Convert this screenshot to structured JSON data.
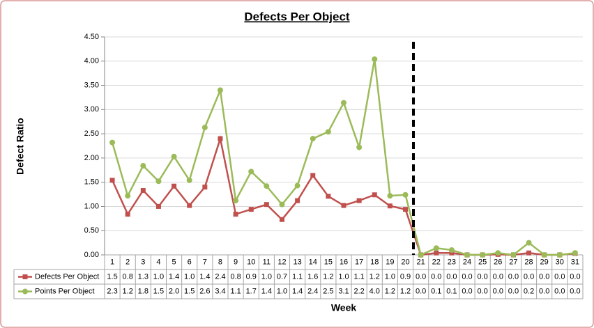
{
  "chart_data": {
    "type": "line",
    "title": "Defects Per Object",
    "x_label": "Week",
    "y_label": "Defect Ratio",
    "categories": [
      "1",
      "2",
      "3",
      "4",
      "5",
      "6",
      "7",
      "8",
      "9",
      "10",
      "11",
      "12",
      "13",
      "14",
      "15",
      "16",
      "17",
      "18",
      "19",
      "20",
      "21",
      "22",
      "23",
      "24",
      "25",
      "26",
      "27",
      "28",
      "29",
      "30",
      "31"
    ],
    "series": [
      {
        "name": "Defects Per Object",
        "color": "#c0504d",
        "marker": "square",
        "values": [
          1.54,
          0.84,
          1.33,
          1.0,
          1.42,
          1.02,
          1.4,
          2.4,
          0.84,
          0.94,
          1.04,
          0.73,
          1.12,
          1.64,
          1.21,
          1.02,
          1.12,
          1.24,
          1.01,
          0.94,
          0,
          0.04,
          0.04,
          0,
          0,
          0.01,
          0,
          0.04,
          0,
          0,
          0.03
        ],
        "value_labels": [
          "1.5",
          "0.8",
          "1.3",
          "1.0",
          "1.4",
          "1.0",
          "1.4",
          "2.4",
          "0.8",
          "0.9",
          "1.0",
          "0.7",
          "1.1",
          "1.6",
          "1.2",
          "1.0",
          "1.1",
          "1.2",
          "1.0",
          "0.9",
          "0.0",
          "0.0",
          "0.0",
          "0.0",
          "0.0",
          "0.0",
          "0.0",
          "0.0",
          "0.0",
          "0.0",
          "0.0"
        ]
      },
      {
        "name": "Points Per Object",
        "color": "#9bbb59",
        "marker": "circle",
        "values": [
          2.32,
          1.22,
          1.84,
          1.52,
          2.03,
          1.54,
          2.63,
          3.4,
          1.12,
          1.72,
          1.42,
          1.04,
          1.43,
          2.4,
          2.54,
          3.14,
          2.22,
          4.04,
          1.22,
          1.24,
          0,
          0.14,
          0.1,
          0,
          0,
          0.04,
          0,
          0.25,
          0,
          0,
          0.04
        ],
        "value_labels": [
          "2.3",
          "1.2",
          "1.8",
          "1.5",
          "2.0",
          "1.5",
          "2.6",
          "3.4",
          "1.1",
          "1.7",
          "1.4",
          "1.0",
          "1.4",
          "2.4",
          "2.5",
          "3.1",
          "2.2",
          "4.0",
          "1.2",
          "1.2",
          "0.0",
          "0.1",
          "0.1",
          "0.0",
          "0.0",
          "0.0",
          "0.0",
          "0.2",
          "0.0",
          "0.0",
          "0.0"
        ]
      }
    ],
    "ylim": [
      0,
      4.5
    ],
    "yticks": [
      {
        "value": 0,
        "label": "0.00"
      },
      {
        "value": 0.5,
        "label": "0.50"
      },
      {
        "value": 1,
        "label": "1.00"
      },
      {
        "value": 1.5,
        "label": "1.50"
      },
      {
        "value": 2,
        "label": "2.00"
      },
      {
        "value": 2.5,
        "label": "2.50"
      },
      {
        "value": 3,
        "label": "3.00"
      },
      {
        "value": 3.5,
        "label": "3.50"
      },
      {
        "value": 4,
        "label": "4.00"
      },
      {
        "value": 4.5,
        "label": "4.50"
      }
    ],
    "grid": true
  }
}
